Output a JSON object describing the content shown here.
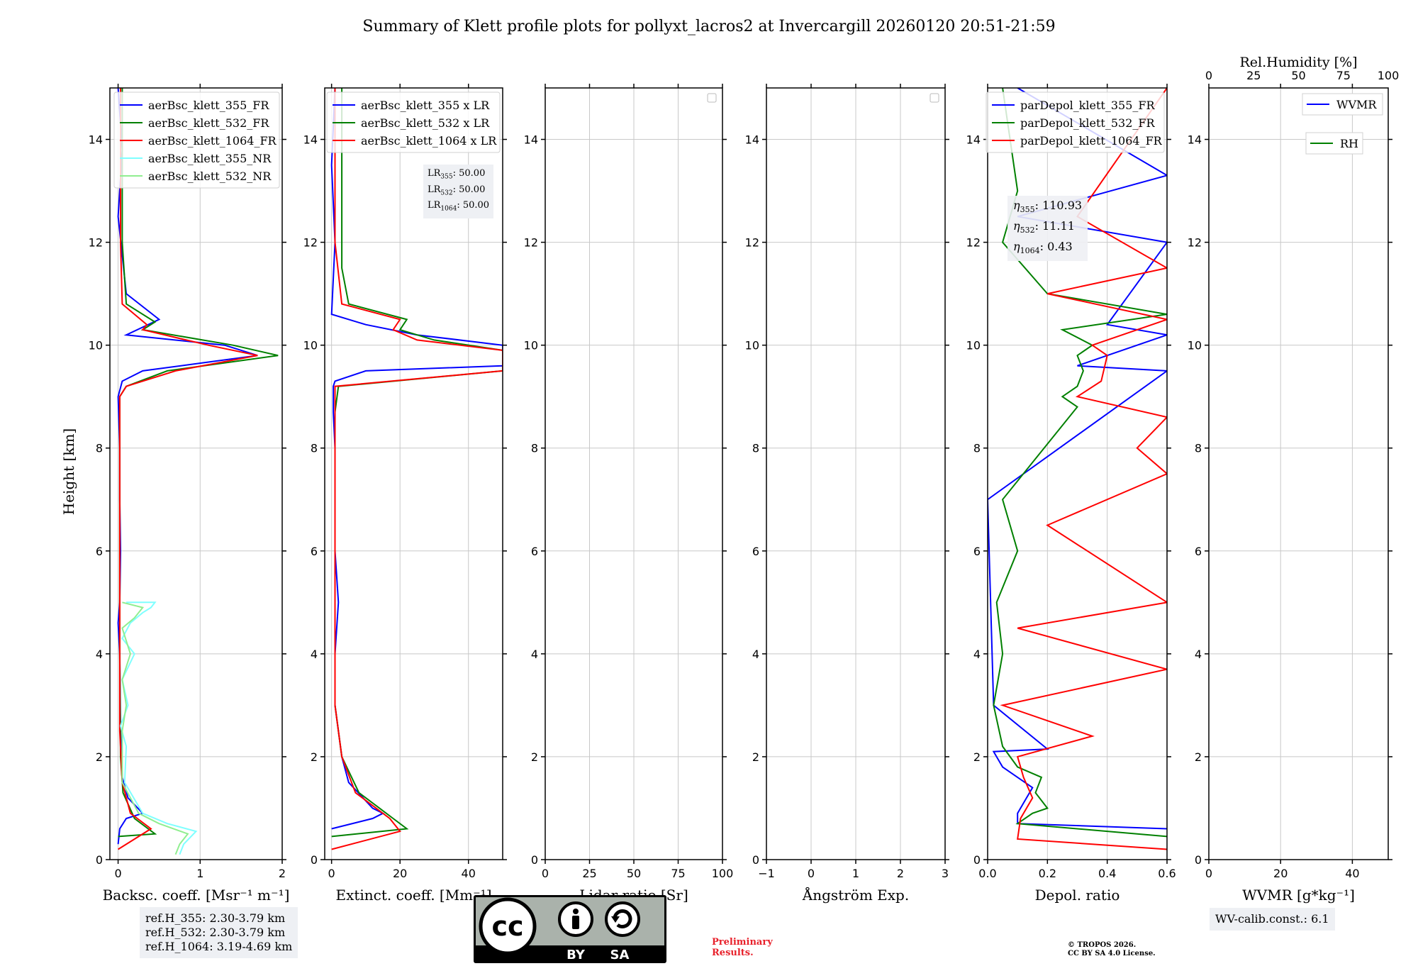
{
  "title": "Summary of Klett profile plots for pollyxt_lacros2 at Invercargill 20260120 20:51-21:59",
  "colors": {
    "c355": "#0000ff",
    "c532": "#008000",
    "c1064": "#ff0000",
    "nr355": "#7fffff",
    "nr532": "#90ee90",
    "grid": "#c8c8c8"
  },
  "y_axis": {
    "label": "Height [km]",
    "ylim": [
      0,
      15
    ],
    "ticks": [
      "0",
      "2",
      "4",
      "6",
      "8",
      "10",
      "12",
      "14"
    ]
  },
  "chart_data": [
    {
      "type": "line",
      "id": "bsc",
      "xlabel": "Backsc. coeff. [Msr⁻¹ m⁻¹]",
      "xlim": [
        -0.1,
        2.0
      ],
      "xticks": [
        "0",
        "1",
        "2"
      ],
      "legend": {
        "placement": "top-right",
        "entries": [
          "aerBsc_klett_355_FR",
          "aerBsc_klett_532_FR",
          "aerBsc_klett_1064_FR",
          "aerBsc_klett_355_NR",
          "aerBsc_klett_532_NR"
        ]
      },
      "series": [
        {
          "name": "aerBsc_klett_355_FR",
          "color": "c355",
          "x": [
            0.0,
            0.02,
            0.1,
            0.3,
            0.12,
            0.05,
            0.03,
            0.02,
            0.0,
            0.02,
            0.03,
            0.02,
            0.02,
            0.0,
            0.05,
            0.3,
            1.7,
            1.3,
            0.1,
            0.5,
            0.1,
            0.0,
            0.05,
            0.0
          ],
          "y": [
            0.3,
            0.6,
            0.8,
            0.9,
            1.2,
            1.6,
            2.5,
            4.0,
            4.6,
            5.0,
            6.0,
            7.0,
            8.0,
            9.0,
            9.3,
            9.5,
            9.8,
            10.0,
            10.2,
            10.5,
            11.0,
            12.5,
            13.8,
            15.0
          ]
        },
        {
          "name": "aerBsc_klett_532_FR",
          "color": "c532",
          "x": [
            0.0,
            0.45,
            0.2,
            0.06,
            0.03,
            0.02,
            0.02,
            0.02,
            0.02,
            0.02,
            0.02,
            0.1,
            0.6,
            1.95,
            1.4,
            0.3,
            0.45,
            0.1,
            0.05,
            0.05,
            0.05
          ],
          "y": [
            0.45,
            0.5,
            0.8,
            1.3,
            2.0,
            4.0,
            6.0,
            7.0,
            8.0,
            8.8,
            9.0,
            9.2,
            9.5,
            9.8,
            10.0,
            10.3,
            10.45,
            10.8,
            12.0,
            13.5,
            15.0
          ]
        },
        {
          "name": "aerBsc_klett_1064_FR",
          "color": "c1064",
          "x": [
            0.0,
            0.4,
            0.15,
            0.05,
            0.02,
            0.02,
            0.02,
            0.02,
            0.02,
            0.02,
            0.1,
            0.7,
            1.7,
            1.1,
            0.3,
            0.35,
            0.05,
            0.03,
            0.03
          ],
          "y": [
            0.2,
            0.6,
            0.9,
            1.5,
            2.5,
            4.0,
            6.0,
            8.0,
            8.8,
            9.0,
            9.2,
            9.5,
            9.8,
            10.0,
            10.3,
            10.4,
            10.8,
            12.0,
            15.0
          ]
        },
        {
          "name": "aerBsc_klett_355_NR",
          "color": "nr355",
          "x": [
            0.75,
            0.8,
            0.95,
            0.6,
            0.3,
            0.08,
            0.1,
            0.03,
            0.12,
            0.05,
            0.2,
            0.05,
            0.15,
            0.3,
            0.4,
            0.45,
            0.1
          ],
          "y": [
            0.1,
            0.3,
            0.55,
            0.7,
            0.9,
            1.5,
            2.2,
            2.6,
            3.0,
            3.5,
            4.0,
            4.3,
            4.6,
            4.8,
            4.9,
            5.0,
            5.0
          ]
        },
        {
          "name": "aerBsc_klett_532_NR",
          "color": "nr532",
          "x": [
            0.7,
            0.75,
            0.85,
            0.5,
            0.25,
            0.05,
            0.05,
            0.1,
            0.05,
            0.15,
            0.05,
            0.2,
            0.3,
            0.05
          ],
          "y": [
            0.1,
            0.3,
            0.5,
            0.7,
            0.9,
            1.5,
            2.5,
            3.0,
            3.5,
            4.0,
            4.5,
            4.7,
            4.9,
            5.0
          ]
        }
      ],
      "infobox": {
        "lines": [
          "ref.H_355: 2.30-3.79 km",
          "ref.H_532: 2.30-3.79 km",
          "ref.H_1064: 3.19-4.69 km"
        ]
      }
    },
    {
      "type": "line",
      "id": "ext",
      "xlabel": "Extinct. coeff. [Mm⁻¹]",
      "xlim": [
        -2,
        50
      ],
      "xticks": [
        "0",
        "20",
        "40"
      ],
      "legend": {
        "placement": "top-right",
        "entries": [
          "aerBsc_klett_355 x LR",
          "aerBsc_klett_532 x LR",
          "aerBsc_klett_1064 x LR"
        ]
      },
      "series": [
        {
          "name": "aerBsc_klett_355 x LR",
          "color": "c355",
          "x": [
            0.0,
            12,
            15,
            12,
            5,
            3,
            1,
            1,
            2,
            1,
            1,
            1,
            0.5,
            0.5,
            1,
            10,
            50,
            50,
            25,
            10,
            0,
            1,
            0,
            1
          ],
          "y": [
            0.6,
            0.8,
            0.9,
            1.0,
            1.5,
            2.0,
            3.0,
            4.0,
            5.0,
            6.0,
            7.0,
            8.0,
            8.7,
            9.2,
            9.3,
            9.5,
            9.6,
            10.0,
            10.2,
            10.4,
            10.6,
            12.0,
            13.5,
            15.0
          ]
        },
        {
          "name": "aerBsc_klett_532 x LR",
          "color": "c532",
          "x": [
            0.0,
            22,
            18,
            8,
            3,
            1,
            1,
            1,
            1,
            2,
            50,
            50,
            30,
            20,
            22,
            5,
            3,
            3,
            3,
            3
          ],
          "y": [
            0.45,
            0.6,
            0.8,
            1.3,
            2.0,
            3.0,
            5.0,
            7.0,
            8.7,
            9.2,
            9.5,
            9.9,
            10.1,
            10.3,
            10.5,
            10.8,
            11.5,
            12.5,
            14.0,
            15.0
          ]
        },
        {
          "name": "aerBsc_klett_1064 x LR",
          "color": "c1064",
          "x": [
            0.0,
            20,
            17,
            7,
            3,
            1,
            1,
            1,
            1,
            1,
            50,
            50,
            25,
            18,
            20,
            3,
            1,
            1,
            1
          ],
          "y": [
            0.2,
            0.55,
            0.8,
            1.3,
            2.0,
            3.0,
            5.0,
            7.0,
            8.7,
            9.2,
            9.5,
            9.9,
            10.1,
            10.3,
            10.5,
            10.8,
            12.0,
            13.5,
            15.0
          ]
        }
      ],
      "infobox": {
        "lines": [
          {
            "base": "LR",
            "sub": "355",
            "val": ": 50.00"
          },
          {
            "base": "LR",
            "sub": "532",
            "val": ": 50.00"
          },
          {
            "base": "LR",
            "sub": "1064",
            "val": ": 50.00"
          }
        ]
      }
    },
    {
      "type": "line",
      "id": "lr",
      "xlabel": "Lidar ratio [Sr]",
      "xlim": [
        0,
        100
      ],
      "xticks": [
        "0",
        "25",
        "50",
        "75",
        "100"
      ],
      "series": []
    },
    {
      "type": "line",
      "id": "ang",
      "xlabel": "Ångström Exp.",
      "xlim": [
        -1,
        3
      ],
      "xticks": [
        "−1",
        "0",
        "1",
        "2",
        "3"
      ],
      "series": []
    },
    {
      "type": "line",
      "id": "depol",
      "xlabel": "Depol. ratio",
      "xlim": [
        0,
        0.6
      ],
      "xticks": [
        "0.0",
        "0.2",
        "0.4",
        "0.6"
      ],
      "legend": {
        "placement": "top-right",
        "entries": [
          "parDepol_klett_355_FR",
          "parDepol_klett_532_FR",
          "parDepol_klett_1064_FR"
        ]
      },
      "series": [
        {
          "name": "parDepol_klett_355_FR",
          "color": "c355",
          "x": [
            0.6,
            0.1,
            0.1,
            0.12,
            0.15,
            0.05,
            0.02,
            0.2,
            0.02,
            0.01,
            0.0,
            0.6,
            0.3,
            0.6,
            0.4,
            0.6,
            0.1,
            0.6,
            0.1
          ],
          "y": [
            0.6,
            0.7,
            0.9,
            1.1,
            1.4,
            1.8,
            2.1,
            2.15,
            3.0,
            5.0,
            7.0,
            9.5,
            9.6,
            10.2,
            10.4,
            12.0,
            12.5,
            13.3,
            15.0
          ]
        },
        {
          "name": "parDepol_klett_532_FR",
          "color": "c532",
          "x": [
            0.6,
            0.1,
            0.15,
            0.2,
            0.16,
            0.18,
            0.1,
            0.05,
            0.02,
            0.05,
            0.03,
            0.1,
            0.05,
            0.3,
            0.25,
            0.3,
            0.32,
            0.3,
            0.35,
            0.25,
            0.6,
            0.2,
            0.05,
            0.1,
            0.05
          ],
          "y": [
            0.45,
            0.7,
            0.9,
            1.0,
            1.3,
            1.6,
            1.8,
            2.2,
            3.0,
            4.0,
            5.0,
            6.0,
            7.0,
            8.8,
            9.0,
            9.2,
            9.5,
            9.8,
            10.0,
            10.3,
            10.6,
            11.0,
            12.0,
            13.0,
            15.0
          ]
        },
        {
          "name": "parDepol_klett_1064_FR",
          "color": "c1064",
          "x": [
            0.6,
            0.1,
            0.11,
            0.15,
            0.12,
            0.1,
            0.35,
            0.05,
            0.6,
            0.1,
            0.6,
            0.2,
            0.6,
            0.5,
            0.6,
            0.3,
            0.38,
            0.4,
            0.35,
            0.6,
            0.2,
            0.6,
            0.3,
            0.6
          ],
          "y": [
            0.2,
            0.4,
            0.8,
            1.2,
            1.6,
            2.0,
            2.4,
            3.0,
            3.7,
            4.5,
            5.0,
            6.5,
            7.5,
            8.0,
            8.6,
            9.0,
            9.3,
            9.8,
            10.0,
            10.5,
            11.0,
            11.5,
            12.5,
            15.0
          ]
        }
      ],
      "infobox": {
        "lines": [
          {
            "base": "η",
            "sub": "355",
            "val": ": 110.93"
          },
          {
            "base": "η",
            "sub": "532",
            "val": ": 11.11"
          },
          {
            "base": "η",
            "sub": "1064",
            "val": ": 0.43"
          }
        ]
      }
    },
    {
      "type": "line",
      "id": "wv",
      "xlabel": "WVMR [g*kg⁻¹]",
      "xlim": [
        0,
        50
      ],
      "xticks": [
        "0",
        "20",
        "40"
      ],
      "top_axis": {
        "label": "Rel.Humidity [%]",
        "ticks": [
          "0",
          "25",
          "50",
          "75",
          "100"
        ]
      },
      "legend": {
        "placement": "top-right",
        "entries": [
          "WVMR",
          "RH"
        ]
      },
      "series": [],
      "infobox": {
        "lines": [
          "WV-calib.const.: 6.1"
        ]
      }
    }
  ],
  "footer": {
    "cc_license_text": "cc",
    "cc_by": "BY",
    "cc_sa": "SA",
    "preliminary": [
      "Preliminary",
      "Results."
    ],
    "copyright": [
      "© TROPOS 2026.",
      "CC BY SA 4.0 License."
    ]
  }
}
